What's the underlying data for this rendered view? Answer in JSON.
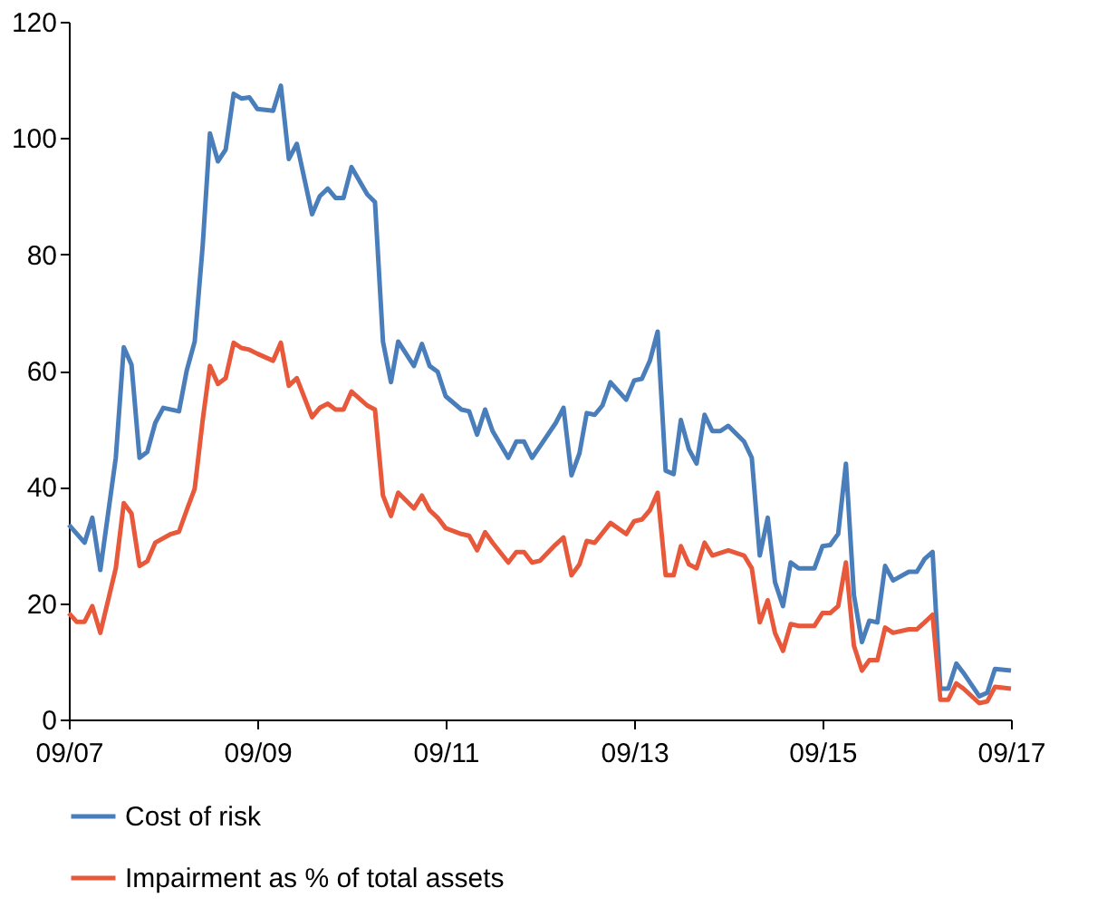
{
  "chart_data": {
    "type": "line",
    "xlim": [
      "2007-09",
      "2017-09"
    ],
    "xticks": [
      {
        "value": "2007-09",
        "label": "09/07"
      },
      {
        "value": "2009-09",
        "label": "09/09"
      },
      {
        "value": "2011-09",
        "label": "09/11"
      },
      {
        "value": "2013-09",
        "label": "09/13"
      },
      {
        "value": "2015-09",
        "label": "09/15"
      },
      {
        "value": "2017-09",
        "label": "09/17"
      }
    ],
    "ylim": [
      0,
      120
    ],
    "yticks": [
      0,
      20,
      40,
      60,
      80,
      100,
      120
    ],
    "grid": false,
    "legend": "bottom",
    "marker": "none",
    "line_style": "solid",
    "series": [
      {
        "name": "Cost of risk",
        "color": "#4a7ebb",
        "x": [
          "2007-09",
          "2007-11",
          "2007-12",
          "2008-01",
          "2008-03",
          "2008-04",
          "2008-05",
          "2008-06",
          "2008-07",
          "2008-08",
          "2008-09",
          "2008-11",
          "2008-12",
          "2009-01",
          "2009-02",
          "2009-03",
          "2009-04",
          "2009-05",
          "2009-06",
          "2009-07",
          "2009-08",
          "2009-09",
          "2009-11",
          "2009-12",
          "2010-01",
          "2010-02",
          "2010-04",
          "2010-05",
          "2010-06",
          "2010-07",
          "2010-08",
          "2010-09",
          "2010-11",
          "2010-12",
          "2011-01",
          "2011-02",
          "2011-03",
          "2011-05",
          "2011-06",
          "2011-07",
          "2011-08",
          "2011-09",
          "2011-11",
          "2011-12",
          "2012-01",
          "2012-02",
          "2012-03",
          "2012-05",
          "2012-06",
          "2012-07",
          "2012-08",
          "2012-09",
          "2012-11",
          "2012-12",
          "2013-01",
          "2013-02",
          "2013-03",
          "2013-04",
          "2013-05",
          "2013-06",
          "2013-08",
          "2013-09",
          "2013-10",
          "2013-11",
          "2013-12",
          "2014-01",
          "2014-02",
          "2014-03",
          "2014-04",
          "2014-05",
          "2014-06",
          "2014-07",
          "2014-08",
          "2014-09",
          "2014-11",
          "2014-12",
          "2015-01",
          "2015-02",
          "2015-03",
          "2015-04",
          "2015-05",
          "2015-06",
          "2015-08",
          "2015-09",
          "2015-10",
          "2015-11",
          "2015-12",
          "2016-01",
          "2016-02",
          "2016-03",
          "2016-04",
          "2016-05",
          "2016-06",
          "2016-08",
          "2016-09",
          "2016-10",
          "2016-11",
          "2016-12",
          "2017-01",
          "2017-02",
          "2017-03",
          "2017-05",
          "2017-06",
          "2017-07",
          "2017-09"
        ],
        "values": [
          33.5,
          30.4,
          34.7,
          25.7,
          45,
          64,
          61,
          45,
          46,
          51,
          53.6,
          53,
          60,
          65,
          81.5,
          100.8,
          96,
          98,
          107.6,
          106.8,
          107,
          105,
          104.7,
          109,
          96.4,
          99,
          86.9,
          90,
          91.3,
          89.7,
          89.7,
          95,
          90.3,
          89,
          65,
          58,
          65,
          60.8,
          64.6,
          60.8,
          59.8,
          55.6,
          53.3,
          53,
          49,
          53.3,
          49.6,
          45,
          47.8,
          47.8,
          45,
          47,
          51,
          53.6,
          42,
          45.8,
          52.7,
          52.4,
          54,
          58,
          55,
          58.3,
          58.6,
          61.7,
          66.7,
          42.8,
          42.2,
          51.5,
          46.5,
          44,
          52.4,
          49.6,
          49.6,
          50.5,
          47.8,
          45,
          28.2,
          34.7,
          23.6,
          19.5,
          27,
          26,
          26,
          29.8,
          30,
          31.9,
          44,
          21.4,
          13.3,
          17,
          16.7,
          26.4,
          23.9,
          25.4,
          25.4,
          27.6,
          28.8,
          5.3,
          5.3,
          9.6,
          8,
          4,
          4.6,
          8.7,
          8.4
        ]
      },
      {
        "name": "Impairment as % of total assets",
        "color": "#e8583a",
        "x": [
          "2007-09",
          "2007-10",
          "2007-11",
          "2007-12",
          "2008-01",
          "2008-03",
          "2008-04",
          "2008-05",
          "2008-06",
          "2008-07",
          "2008-08",
          "2008-10",
          "2008-11",
          "2008-12",
          "2009-01",
          "2009-02",
          "2009-03",
          "2009-04",
          "2009-05",
          "2009-06",
          "2009-07",
          "2009-08",
          "2009-09",
          "2009-11",
          "2009-12",
          "2010-01",
          "2010-02",
          "2010-04",
          "2010-05",
          "2010-06",
          "2010-07",
          "2010-08",
          "2010-09",
          "2010-11",
          "2010-12",
          "2011-01",
          "2011-02",
          "2011-03",
          "2011-05",
          "2011-06",
          "2011-07",
          "2011-08",
          "2011-09",
          "2011-11",
          "2011-12",
          "2012-01",
          "2012-02",
          "2012-03",
          "2012-05",
          "2012-06",
          "2012-07",
          "2012-08",
          "2012-09",
          "2012-11",
          "2012-12",
          "2013-01",
          "2013-02",
          "2013-03",
          "2013-04",
          "2013-06",
          "2013-08",
          "2013-09",
          "2013-10",
          "2013-11",
          "2013-12",
          "2014-01",
          "2014-02",
          "2014-03",
          "2014-04",
          "2014-05",
          "2014-06",
          "2014-07",
          "2014-09",
          "2014-11",
          "2014-12",
          "2015-01",
          "2015-02",
          "2015-03",
          "2015-04",
          "2015-05",
          "2015-06",
          "2015-08",
          "2015-09",
          "2015-10",
          "2015-11",
          "2015-12",
          "2016-01",
          "2016-02",
          "2016-03",
          "2016-04",
          "2016-05",
          "2016-06",
          "2016-08",
          "2016-09",
          "2016-10",
          "2016-11",
          "2016-12",
          "2017-01",
          "2017-02",
          "2017-03",
          "2017-05",
          "2017-06",
          "2017-07",
          "2017-09"
        ],
        "values": [
          18.3,
          16.8,
          16.8,
          19.5,
          14.9,
          26,
          37.2,
          35.4,
          26.4,
          27.2,
          30.4,
          31.9,
          32.3,
          36,
          39.7,
          51.5,
          60.8,
          57.7,
          58.7,
          64.8,
          63.9,
          63.6,
          62.9,
          61.7,
          64.8,
          57.4,
          58.7,
          52,
          53.6,
          54.3,
          53.3,
          53.3,
          56.4,
          54,
          53.3,
          38.5,
          35,
          39,
          36.3,
          38.5,
          36,
          34.7,
          32.9,
          31.9,
          31.6,
          29.1,
          32.2,
          30.4,
          27,
          28.8,
          28.8,
          27,
          27.3,
          30.1,
          31.3,
          24.8,
          26.7,
          30.7,
          30.4,
          33.8,
          31.9,
          34.1,
          34.4,
          36,
          39,
          24.8,
          24.8,
          29.8,
          26.7,
          26,
          30.4,
          28.2,
          29.1,
          28.2,
          26,
          16.7,
          20.5,
          14.9,
          11.8,
          16.4,
          16.1,
          16.1,
          18.3,
          18.3,
          19.5,
          27,
          12.7,
          8.4,
          10.2,
          10.2,
          15.8,
          14.9,
          15.5,
          15.5,
          16.7,
          18,
          3.4,
          3.4,
          6.2,
          5.3,
          2.8,
          3.1,
          5.6,
          5.3
        ]
      }
    ]
  }
}
